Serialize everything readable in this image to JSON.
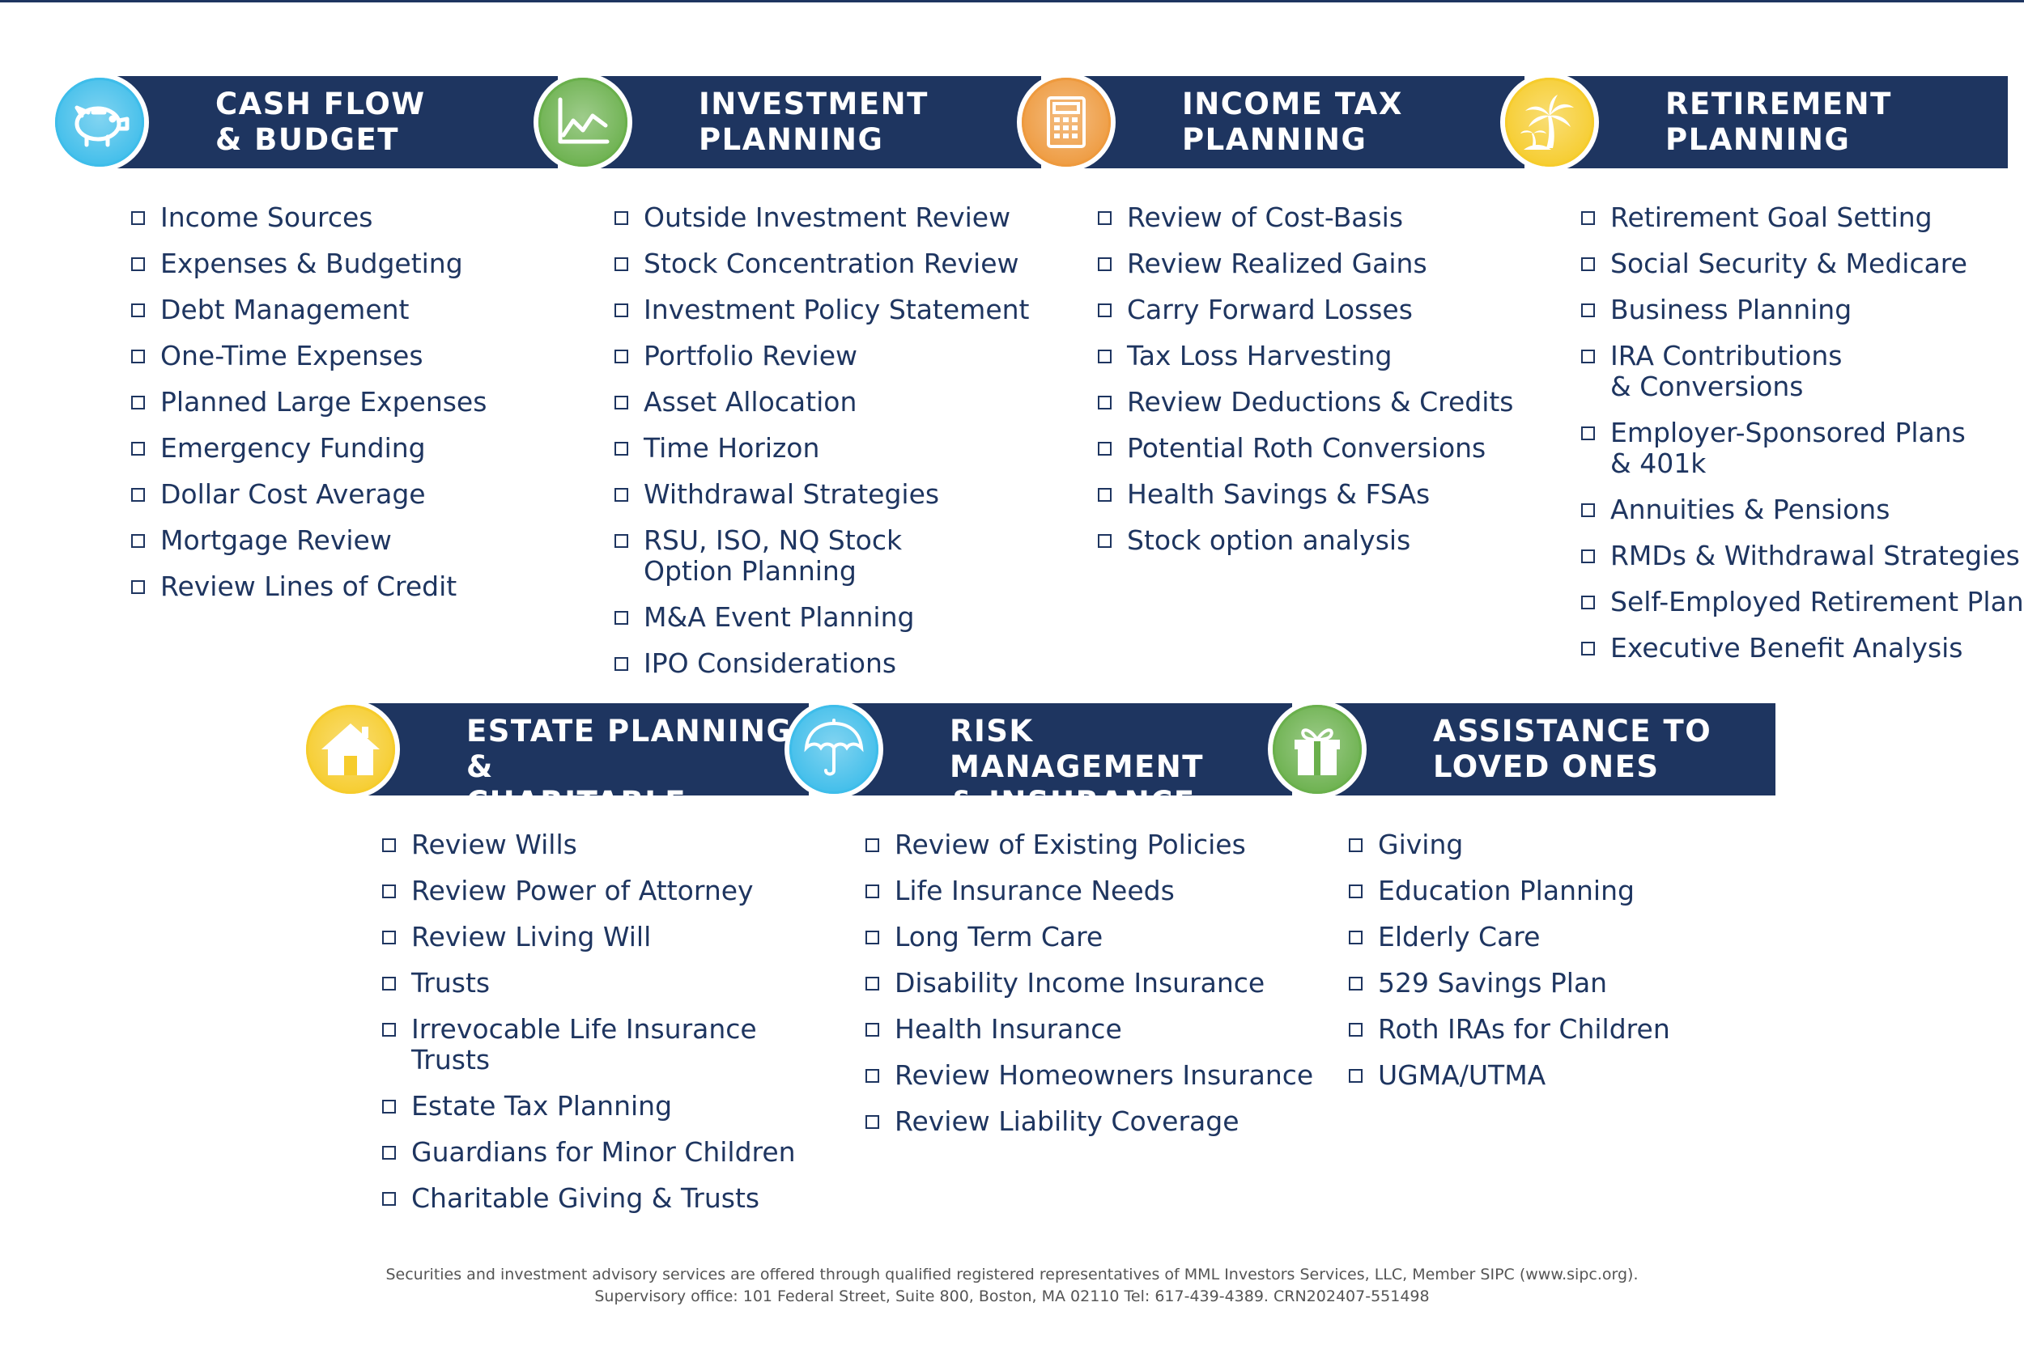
{
  "sections": [
    {
      "title": "CASH FLOW\n& BUDGET",
      "icon": "piggy-bank-icon",
      "badge_color": "#3ebdea",
      "items": [
        "Income Sources",
        "Expenses & Budgeting",
        "Debt Management",
        "One-Time Expenses",
        "Planned Large Expenses",
        "Emergency Funding",
        "Dollar Cost Average",
        "Mortgage Review",
        "Review Lines of Credit"
      ]
    },
    {
      "title": "INVESTMENT\nPLANNING",
      "icon": "line-chart-icon",
      "badge_color": "#6ab04c",
      "items": [
        "Outside Investment Review",
        "Stock Concentration Review",
        "Investment Policy Statement",
        "Portfolio Review",
        "Asset Allocation",
        "Time Horizon",
        "Withdrawal Strategies",
        "RSU, ISO, NQ Stock\nOption Planning",
        "M&A Event Planning",
        "IPO Considerations"
      ]
    },
    {
      "title": "INCOME TAX\nPLANNING",
      "icon": "calculator-icon",
      "badge_color": "#ee9a3e",
      "items": [
        "Review of Cost-Basis",
        "Review Realized Gains",
        "Carry Forward Losses",
        "Tax Loss Harvesting",
        "Review Deductions & Credits",
        "Potential Roth Conversions",
        "Health Savings & FSAs",
        "Stock option analysis"
      ]
    },
    {
      "title": "RETIREMENT\nPLANNING",
      "icon": "palm-tree-icon",
      "badge_color": "#f6cc2c",
      "items": [
        "Retirement Goal Setting",
        "Social Security & Medicare",
        "Business Planning",
        "IRA Contributions\n& Conversions",
        "Employer-Sponsored Plans\n& 401k",
        "Annuities & Pensions",
        "RMDs & Withdrawal Strategies",
        "Self-Employed Retirement Plan",
        "Executive Benefit Analysis"
      ]
    },
    {
      "title": "ESTATE PLANNING &\nCHARITABLE GIVING",
      "icon": "house-icon",
      "badge_color": "#f6cc2c",
      "items": [
        "Review Wills",
        "Review Power of Attorney",
        "Review Living Will",
        "Trusts",
        "Irrevocable Life Insurance Trusts",
        "Estate Tax Planning",
        "Guardians for Minor Children",
        "Charitable Giving & Trusts"
      ]
    },
    {
      "title": "RISK MANAGEMENT\n& INSURANCE",
      "icon": "umbrella-icon",
      "badge_color": "#3ebdea",
      "items": [
        "Review of Existing Policies",
        "Life Insurance Needs",
        "Long Term Care",
        "Disability Income Insurance",
        "Health Insurance",
        "Review Homeowners Insurance",
        "Review Liability Coverage"
      ]
    },
    {
      "title": "ASSISTANCE TO\nLOVED ONES",
      "icon": "gift-icon",
      "badge_color": "#6ab04c",
      "items": [
        "Giving",
        "Education Planning",
        "Elderly Care",
        "529 Savings Plan",
        "Roth IRAs for Children",
        "UGMA/UTMA"
      ]
    }
  ],
  "disclaimer": {
    "line1": "Securities and investment advisory services are offered through qualified registered representatives of MML Investors Services, LLC, Member SIPC (www.sipc.org).",
    "line2": "Supervisory office: 101 Federal Street, Suite 800, Boston, MA 02110 Tel: 617-439-4389. CRN202407-551498"
  },
  "colors": {
    "navy": "#1e3560",
    "text": "#1e3560"
  }
}
